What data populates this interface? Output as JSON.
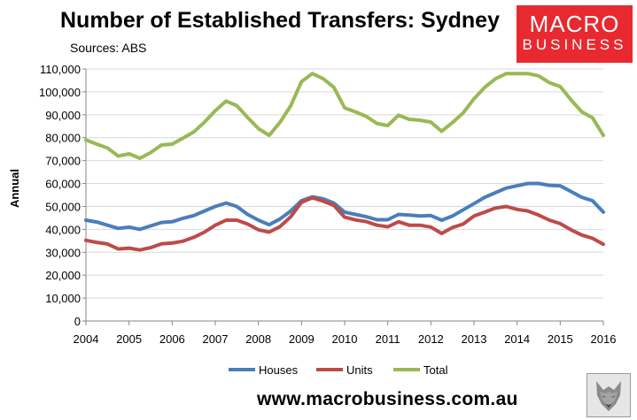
{
  "header": {
    "title": "Number of Established Transfers: Sydney",
    "source": "Sources: ABS"
  },
  "logo": {
    "line1": "MACRO",
    "line2": "BUSINESS",
    "color": "#e8292f"
  },
  "footer": {
    "url": "www.macrobusiness.com.au"
  },
  "chart_data": {
    "type": "line",
    "title": "Number of Established Transfers: Sydney",
    "ylabel": "Annual",
    "xlabel": "",
    "ylim": [
      0,
      110000
    ],
    "yticks": [
      "0",
      "10,000",
      "20,000",
      "30,000",
      "40,000",
      "50,000",
      "60,000",
      "70,000",
      "80,000",
      "90,000",
      "100,000",
      "110,000"
    ],
    "xlim": [
      2004,
      2016
    ],
    "xticks": [
      "2004",
      "2005",
      "2006",
      "2007",
      "2008",
      "2009",
      "2010",
      "2011",
      "2012",
      "2013",
      "2014",
      "2015",
      "2016"
    ],
    "grid": "horizontal",
    "legend": "bottom",
    "x": [
      2004.0,
      2004.25,
      2004.5,
      2004.75,
      2005.0,
      2005.25,
      2005.5,
      2005.75,
      2006.0,
      2006.25,
      2006.5,
      2006.75,
      2007.0,
      2007.25,
      2007.5,
      2007.75,
      2008.0,
      2008.25,
      2008.5,
      2008.75,
      2009.0,
      2009.25,
      2009.5,
      2009.75,
      2010.0,
      2010.25,
      2010.5,
      2010.75,
      2011.0,
      2011.25,
      2011.5,
      2011.75,
      2012.0,
      2012.25,
      2012.5,
      2012.75,
      2013.0,
      2013.25,
      2013.5,
      2013.75,
      2014.0,
      2014.25,
      2014.5,
      2014.75,
      2015.0,
      2015.25,
      2015.5,
      2015.75,
      2016.0
    ],
    "series": [
      {
        "name": "Houses",
        "color": "#4a7ebb",
        "values": [
          44000,
          43200,
          41800,
          40400,
          41000,
          40000,
          41500,
          43000,
          43300,
          44800,
          46000,
          48000,
          50000,
          51500,
          50000,
          46500,
          44000,
          42000,
          44500,
          48000,
          52500,
          54200,
          53300,
          51500,
          47500,
          46500,
          45500,
          44200,
          44200,
          46500,
          46200,
          45800,
          46000,
          44000,
          45800,
          48500,
          51200,
          54000,
          56000,
          58000,
          59000,
          60000,
          60000,
          59200,
          59000,
          56500,
          54000,
          52500,
          47500
        ]
      },
      {
        "name": "Units",
        "color": "#be4b48",
        "values": [
          35200,
          34300,
          33600,
          31400,
          31800,
          31000,
          32000,
          33700,
          34000,
          34800,
          36500,
          38800,
          41800,
          44000,
          44000,
          42300,
          39800,
          38800,
          41200,
          45500,
          51800,
          53800,
          52300,
          50500,
          45300,
          44100,
          43400,
          41800,
          41100,
          43300,
          41800,
          41800,
          41000,
          38200,
          40800,
          42300,
          45800,
          47500,
          49300,
          50000,
          48700,
          48000,
          46200,
          44000,
          42500,
          39800,
          37500,
          36100,
          33500
        ]
      },
      {
        "name": "Total",
        "color": "#98b954",
        "values": [
          79000,
          77200,
          75500,
          72000,
          73000,
          71000,
          73500,
          76800,
          77200,
          79800,
          82500,
          86800,
          91800,
          96000,
          94000,
          88800,
          84000,
          81000,
          86700,
          94000,
          104500,
          108000,
          105800,
          102000,
          93000,
          91300,
          89300,
          86200,
          85300,
          89800,
          88000,
          87600,
          86800,
          82800,
          86600,
          90800,
          97000,
          102000,
          105700,
          108000,
          108000,
          108000,
          107000,
          104000,
          102300,
          96500,
          91300,
          88700,
          81000
        ]
      }
    ]
  }
}
